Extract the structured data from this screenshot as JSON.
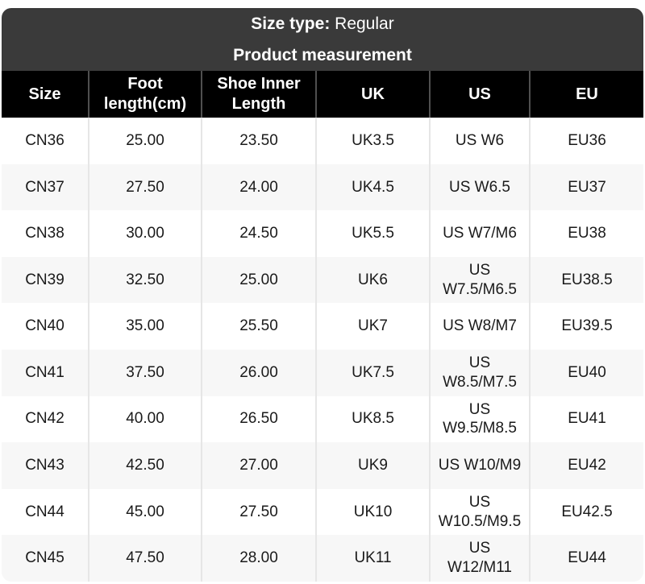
{
  "theme": {
    "page-bg": "#ffffff",
    "header-bg": "#3a3a3a",
    "header-text": "#ffffff",
    "colhead-bg": "#000000",
    "colhead-text": "#ffffff",
    "row-alt-bg": "#f7f7f7",
    "body-text": "#1a1a1a",
    "divider-dark": "#4f4f4f",
    "divider-light": "#e6e6e6"
  },
  "header": {
    "size_type_label": "Size type: ",
    "size_type_value": "Regular",
    "subtitle": "Product measurement"
  },
  "table": {
    "columns": [
      "Size",
      "Foot length(cm)",
      "Shoe Inner Length",
      "UK",
      "US",
      "EU"
    ],
    "rows": [
      [
        "CN36",
        "25.00",
        "23.50",
        "UK3.5",
        "US W6",
        "EU36"
      ],
      [
        "CN37",
        "27.50",
        "24.00",
        "UK4.5",
        "US W6.5",
        "EU37"
      ],
      [
        "CN38",
        "30.00",
        "24.50",
        "UK5.5",
        "US W7/M6",
        "EU38"
      ],
      [
        "CN39",
        "32.50",
        "25.00",
        "UK6",
        "US W7.5/M6.5",
        "EU38.5"
      ],
      [
        "CN40",
        "35.00",
        "25.50",
        "UK7",
        "US W8/M7",
        "EU39.5"
      ],
      [
        "CN41",
        "37.50",
        "26.00",
        "UK7.5",
        "US W8.5/M7.5",
        "EU40"
      ],
      [
        "CN42",
        "40.00",
        "26.50",
        "UK8.5",
        "US W9.5/M8.5",
        "EU41"
      ],
      [
        "CN43",
        "42.50",
        "27.00",
        "UK9",
        "US W10/M9",
        "EU42"
      ],
      [
        "CN44",
        "45.00",
        "27.50",
        "UK10",
        "US W10.5/M9.5",
        "EU42.5"
      ],
      [
        "CN45",
        "47.50",
        "28.00",
        "UK11",
        "US W12/M11",
        "EU44"
      ]
    ]
  }
}
